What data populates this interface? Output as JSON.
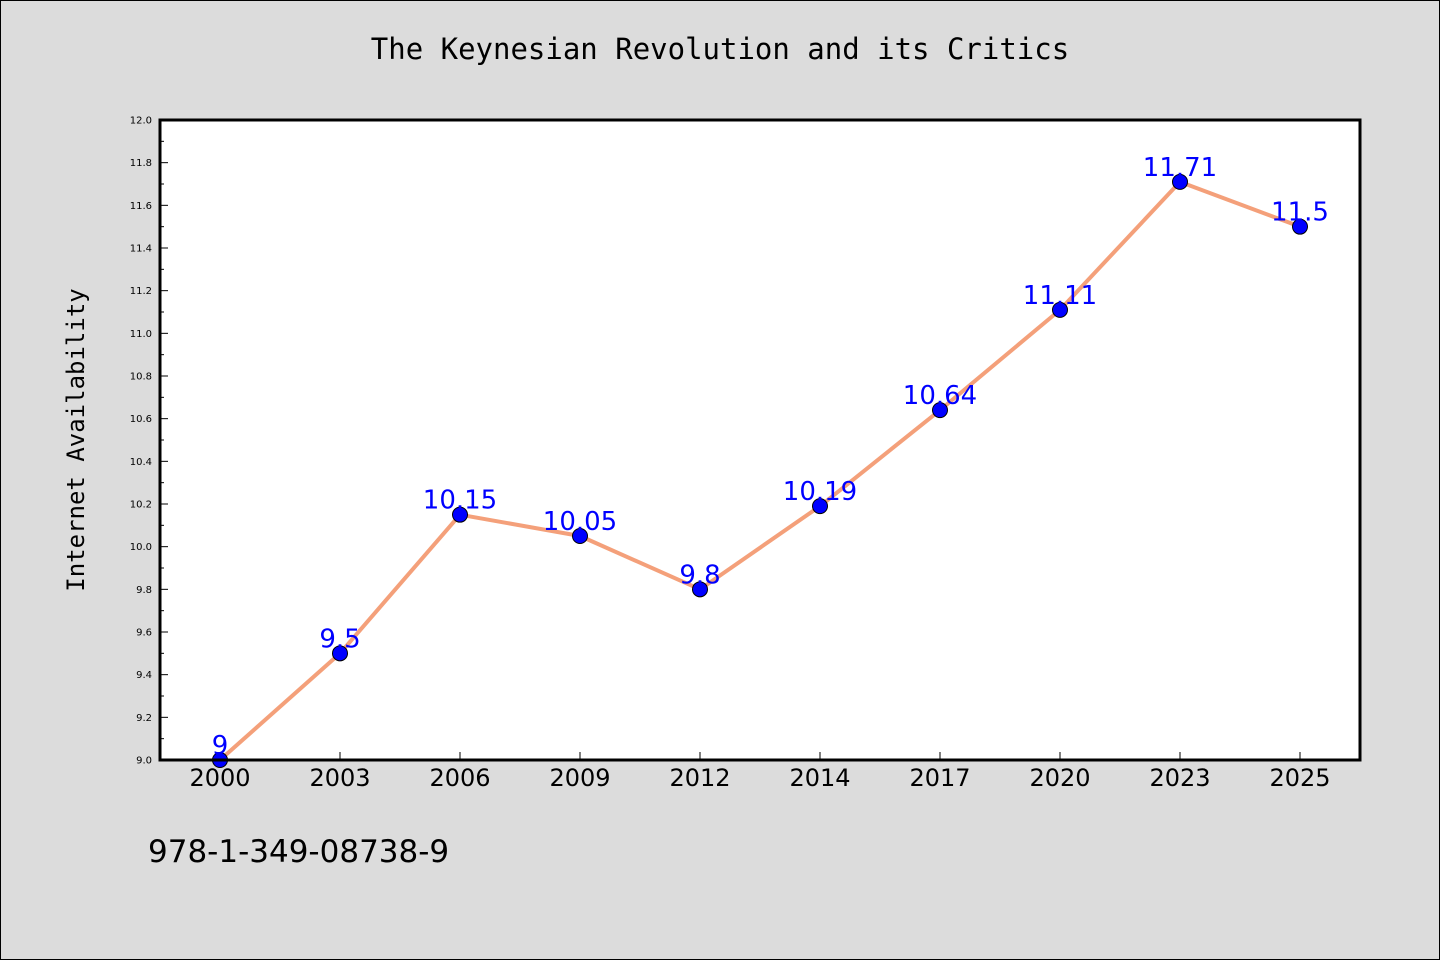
{
  "chart_data": {
    "type": "line",
    "title": "The Keynesian Revolution and its Critics",
    "xlabel": "",
    "ylabel": "Internet Availability",
    "categories": [
      "2000",
      "2003",
      "2006",
      "2009",
      "2012",
      "2014",
      "2017",
      "2020",
      "2023",
      "2025"
    ],
    "values": [
      9,
      9.5,
      10.15,
      10.05,
      9.8,
      10.19,
      10.64,
      11.11,
      11.71,
      11.5
    ],
    "data_labels": [
      "9",
      "9.5",
      "10.15",
      "10.05",
      "9.8",
      "10.19",
      "10.64",
      "11.11",
      "11.71",
      "11.5"
    ],
    "ylim": [
      9.0,
      12.0
    ],
    "yticks": [
      "9.0",
      "9.2",
      "9.4",
      "9.6",
      "9.8",
      "10.0",
      "10.2",
      "10.4",
      "10.6",
      "10.8",
      "11.0",
      "11.2",
      "11.4",
      "11.6",
      "11.8",
      "12.0"
    ],
    "grid": false,
    "line_color": "#f4a07a",
    "marker_color": "#0000ff",
    "label_color": "#0000ff",
    "plot_background": "#ffffff",
    "figure_background": "#dcdcdc"
  },
  "footer_text": "978-1-349-08738-9"
}
